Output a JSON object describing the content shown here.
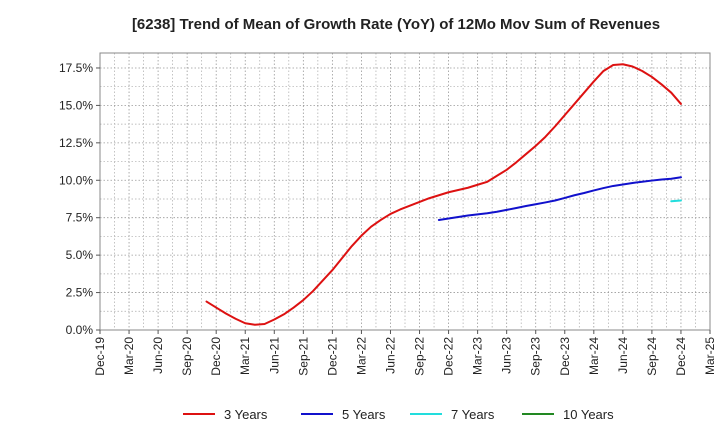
{
  "chart_data": {
    "type": "line",
    "title": "[6238]  Trend of Mean of Growth Rate (YoY) of 12Mo Mov Sum of Revenues",
    "xlabel": "",
    "ylabel": "",
    "x_ticks": [
      "Dec-19",
      "Mar-20",
      "Jun-20",
      "Sep-20",
      "Dec-20",
      "Mar-21",
      "Jun-21",
      "Sep-21",
      "Dec-21",
      "Mar-22",
      "Jun-22",
      "Sep-22",
      "Dec-22",
      "Mar-23",
      "Jun-23",
      "Sep-23",
      "Dec-23",
      "Mar-24",
      "Jun-24",
      "Sep-24",
      "Dec-24",
      "Mar-25"
    ],
    "y_ticks": [
      "0.0%",
      "2.5%",
      "5.0%",
      "7.5%",
      "10.0%",
      "12.5%",
      "15.0%",
      "17.5%"
    ],
    "y_tick_values": [
      0,
      2.5,
      5,
      7.5,
      10,
      12.5,
      15,
      17.5
    ],
    "ylim": [
      0,
      18.5
    ],
    "grid": true,
    "legend_position": "bottom",
    "series": [
      {
        "name": "3 Years",
        "color": "#dd1111",
        "points": [
          [
            "Nov-20",
            1.9
          ],
          [
            "Dec-20",
            1.5
          ],
          [
            "Jan-21",
            1.1
          ],
          [
            "Feb-21",
            0.75
          ],
          [
            "Mar-21",
            0.45
          ],
          [
            "Apr-21",
            0.35
          ],
          [
            "May-21",
            0.4
          ],
          [
            "Jun-21",
            0.7
          ],
          [
            "Jul-21",
            1.05
          ],
          [
            "Aug-21",
            1.5
          ],
          [
            "Sep-21",
            2.0
          ],
          [
            "Oct-21",
            2.6
          ],
          [
            "Nov-21",
            3.3
          ],
          [
            "Dec-21",
            4.0
          ],
          [
            "Jan-22",
            4.8
          ],
          [
            "Feb-22",
            5.6
          ],
          [
            "Mar-22",
            6.3
          ],
          [
            "Apr-22",
            6.9
          ],
          [
            "May-22",
            7.35
          ],
          [
            "Jun-22",
            7.75
          ],
          [
            "Jul-22",
            8.05
          ],
          [
            "Aug-22",
            8.3
          ],
          [
            "Sep-22",
            8.55
          ],
          [
            "Oct-22",
            8.8
          ],
          [
            "Nov-22",
            9.0
          ],
          [
            "Dec-22",
            9.2
          ],
          [
            "Jan-23",
            9.35
          ],
          [
            "Feb-23",
            9.5
          ],
          [
            "Mar-23",
            9.7
          ],
          [
            "Apr-23",
            9.9
          ],
          [
            "May-23",
            10.3
          ],
          [
            "Jun-23",
            10.7
          ],
          [
            "Jul-23",
            11.2
          ],
          [
            "Aug-23",
            11.75
          ],
          [
            "Sep-23",
            12.3
          ],
          [
            "Oct-23",
            12.9
          ],
          [
            "Nov-23",
            13.6
          ],
          [
            "Dec-23",
            14.35
          ],
          [
            "Jan-24",
            15.1
          ],
          [
            "Feb-24",
            15.85
          ],
          [
            "Mar-24",
            16.6
          ],
          [
            "Apr-24",
            17.3
          ],
          [
            "May-24",
            17.7
          ],
          [
            "Jun-24",
            17.75
          ],
          [
            "Jul-24",
            17.6
          ],
          [
            "Aug-24",
            17.3
          ],
          [
            "Sep-24",
            16.9
          ],
          [
            "Oct-24",
            16.4
          ],
          [
            "Nov-24",
            15.85
          ],
          [
            "Dec-24",
            15.1
          ]
        ]
      },
      {
        "name": "5 Years",
        "color": "#1111cc",
        "points": [
          [
            "Nov-22",
            7.35
          ],
          [
            "Dec-22",
            7.45
          ],
          [
            "Jan-23",
            7.55
          ],
          [
            "Feb-23",
            7.65
          ],
          [
            "Mar-23",
            7.72
          ],
          [
            "Apr-23",
            7.8
          ],
          [
            "May-23",
            7.9
          ],
          [
            "Jun-23",
            8.02
          ],
          [
            "Jul-23",
            8.15
          ],
          [
            "Aug-23",
            8.28
          ],
          [
            "Sep-23",
            8.4
          ],
          [
            "Oct-23",
            8.52
          ],
          [
            "Nov-23",
            8.65
          ],
          [
            "Dec-23",
            8.82
          ],
          [
            "Jan-24",
            9.0
          ],
          [
            "Feb-24",
            9.15
          ],
          [
            "Mar-24",
            9.32
          ],
          [
            "Apr-24",
            9.48
          ],
          [
            "May-24",
            9.62
          ],
          [
            "Jun-24",
            9.72
          ],
          [
            "Jul-24",
            9.82
          ],
          [
            "Aug-24",
            9.9
          ],
          [
            "Sep-24",
            9.98
          ],
          [
            "Oct-24",
            10.05
          ],
          [
            "Nov-24",
            10.1
          ],
          [
            "Dec-24",
            10.2
          ]
        ]
      },
      {
        "name": "7 Years",
        "color": "#22dddd",
        "points": [
          [
            "Nov-24",
            8.6
          ],
          [
            "Dec-24",
            8.65
          ]
        ]
      },
      {
        "name": "10 Years",
        "color": "#228822",
        "points": []
      }
    ]
  }
}
